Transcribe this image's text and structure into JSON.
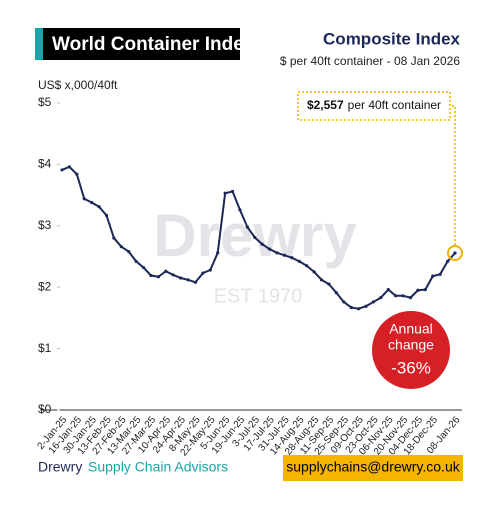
{
  "chart_data": {
    "type": "line",
    "title": "World Container Index",
    "index_name": "Composite Index",
    "subtitle": "$ per 40ft container - 08 Jan 2026",
    "y_label": "US$ x,000/40ft",
    "categories": [
      "2-Jan-25",
      null,
      "16-Jan-25",
      null,
      "30-Jan-25",
      null,
      "13-Feb-25",
      null,
      "27-Feb-25",
      null,
      "13-Mar-25",
      null,
      "27-Mar-25",
      null,
      "10-Apr-25",
      null,
      "24-Apr-25",
      null,
      "8-May-25",
      null,
      "22-May-25",
      null,
      "5-Jun-25",
      null,
      "19-Jun-25",
      null,
      "3-Jul-25",
      null,
      "17-Jul-25",
      null,
      "31-Jul-25",
      null,
      "14-Aug-25",
      null,
      "28-Aug-25",
      null,
      "11-Sep-25",
      null,
      "25-Sep-25",
      null,
      "09-Oct-25",
      null,
      "23-Oct-25",
      null,
      "06-Nov-25",
      null,
      "20-Nov-25",
      null,
      "04-Dec-25",
      null,
      "18-Dec-25",
      null,
      null,
      "08-Jan-26"
    ],
    "series": [
      {
        "name": "Composite Index",
        "color": "#1c2857",
        "values": [
          3.91,
          3.96,
          3.84,
          3.44,
          3.38,
          3.31,
          3.17,
          2.8,
          2.66,
          2.58,
          2.42,
          2.32,
          2.19,
          2.17,
          2.26,
          2.2,
          2.15,
          2.12,
          2.08,
          2.23,
          2.28,
          2.56,
          3.53,
          3.56,
          3.26,
          2.98,
          2.81,
          2.7,
          2.62,
          2.56,
          2.52,
          2.48,
          2.42,
          2.35,
          2.25,
          2.12,
          2.05,
          1.91,
          1.76,
          1.67,
          1.65,
          1.69,
          1.76,
          1.83,
          1.96,
          1.86,
          1.86,
          1.83,
          1.95,
          1.96,
          2.18,
          2.21,
          2.42,
          2.557
        ],
        "value_labels": [
          null,
          null,
          null,
          null,
          null,
          null,
          null,
          null,
          null,
          null,
          null,
          null,
          null,
          null,
          null,
          null,
          null,
          null,
          null,
          null,
          null,
          null,
          null,
          null,
          null,
          null,
          null,
          null,
          null,
          null,
          null,
          null,
          null,
          null,
          null,
          null,
          null,
          null,
          null,
          null,
          null,
          null,
          null,
          null,
          null,
          null,
          null,
          null,
          null,
          null,
          null,
          null,
          null,
          "$2,557"
        ]
      }
    ],
    "annotation": "per 40ft container",
    "highlight_color": "#f0b400",
    "callout": {
      "lines": [
        "Annual",
        "change"
      ],
      "value": "-36%",
      "color": "#d71f26"
    },
    "ylim": [
      0,
      5
    ],
    "yticks": [
      {
        "value": 0,
        "label": "$0"
      },
      {
        "value": 1,
        "label": "$1"
      },
      {
        "value": 2,
        "label": "$2"
      },
      {
        "value": 3,
        "label": "$3"
      },
      {
        "value": 4,
        "label": "$4"
      },
      {
        "value": 5,
        "label": "$5"
      }
    ],
    "grid": false,
    "watermark": {
      "name": "Drewry",
      "est": "EST 1970"
    }
  },
  "footer": {
    "brand": "Drewry",
    "tagline": "Supply Chain Advisors",
    "email": "supplychains@drewry.co.uk"
  }
}
